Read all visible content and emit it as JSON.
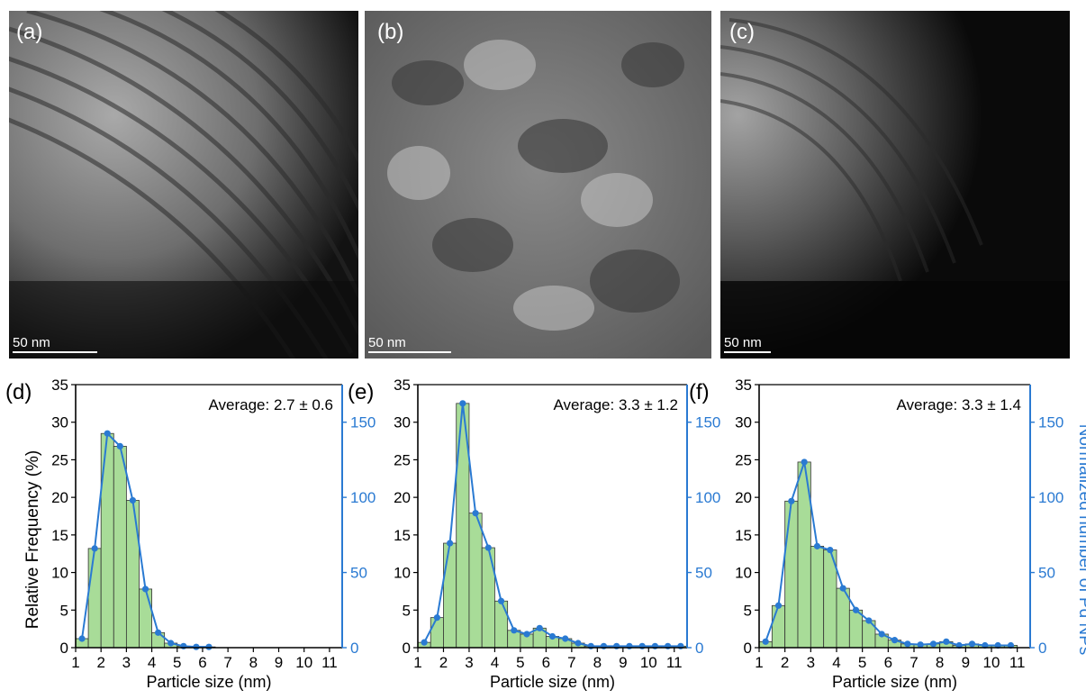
{
  "micrographs": [
    {
      "label": "(a)",
      "scale": "50 nm"
    },
    {
      "label": "(b)",
      "scale": "50 nm"
    },
    {
      "label": "(c)",
      "scale": "50 nm"
    }
  ],
  "axis_labels": {
    "left": "Relative Frequency (%)",
    "right": "Normalized number of Pd NPs",
    "x": "Particle size (nm)"
  },
  "colors": {
    "bar_fill": "#a8dc98",
    "line": "#2a7ad2",
    "right_axis": "#2a7ad2"
  },
  "chart_data": [
    {
      "type": "bar",
      "panel": "(d)",
      "annotation": "Average: 2.7 ± 0.6",
      "xlabel": "Particle size (nm)",
      "ylabel": "Relative Frequency (%)",
      "xlim": [
        1,
        11.5
      ],
      "ylim": [
        0,
        35
      ],
      "y2lim": [
        0,
        175
      ],
      "xticks": [
        "1",
        "2",
        "3",
        "4",
        "5",
        "6",
        "7",
        "8",
        "9",
        "10",
        "11"
      ],
      "yticks": [
        "0",
        "5",
        "10",
        "15",
        "20",
        "25",
        "30",
        "35"
      ],
      "y2ticks": [
        "0",
        "50",
        "100",
        "150"
      ],
      "x": [
        1.25,
        1.75,
        2.25,
        2.75,
        3.25,
        3.75,
        4.25,
        4.75,
        5.25,
        5.75,
        6.25
      ],
      "values": [
        1.2,
        13.2,
        28.5,
        26.8,
        19.6,
        7.8,
        2.0,
        0.6,
        0.2,
        0.1,
        0.1
      ]
    },
    {
      "type": "bar",
      "panel": "(e)",
      "annotation": "Average: 3.3 ± 1.2",
      "xlabel": "Particle size (nm)",
      "ylabel": "",
      "xlim": [
        1,
        11.5
      ],
      "ylim": [
        0,
        35
      ],
      "y2lim": [
        0,
        175
      ],
      "xticks": [
        "1",
        "2",
        "3",
        "4",
        "5",
        "6",
        "7",
        "8",
        "9",
        "10",
        "11"
      ],
      "yticks": [
        "0",
        "5",
        "10",
        "15",
        "20",
        "25",
        "30",
        "35"
      ],
      "y2ticks": [
        "0",
        "50",
        "100",
        "150"
      ],
      "x": [
        1.25,
        1.75,
        2.25,
        2.75,
        3.25,
        3.75,
        4.25,
        4.75,
        5.25,
        5.75,
        6.25,
        6.75,
        7.25,
        7.75,
        8.25,
        8.75,
        9.25,
        9.75,
        10.25,
        10.75,
        11.25
      ],
      "values": [
        0.7,
        4.0,
        13.9,
        32.5,
        17.9,
        13.3,
        6.2,
        2.3,
        1.8,
        2.6,
        1.5,
        1.2,
        0.6,
        0.2,
        0.2,
        0.2,
        0.2,
        0.2,
        0.2,
        0.2,
        0.2
      ]
    },
    {
      "type": "bar",
      "panel": "(f)",
      "annotation": "Average: 3.3 ± 1.4",
      "xlabel": "Particle size (nm)",
      "ylabel": "",
      "xlim": [
        1,
        11.5
      ],
      "ylim": [
        0,
        35
      ],
      "y2lim": [
        0,
        175
      ],
      "xticks": [
        "1",
        "2",
        "3",
        "4",
        "5",
        "6",
        "7",
        "8",
        "9",
        "10",
        "11"
      ],
      "yticks": [
        "0",
        "5",
        "10",
        "15",
        "20",
        "25",
        "30",
        "35"
      ],
      "y2ticks": [
        "0",
        "50",
        "100",
        "150"
      ],
      "x": [
        1.25,
        1.75,
        2.25,
        2.75,
        3.25,
        3.75,
        4.25,
        4.75,
        5.25,
        5.75,
        6.25,
        6.75,
        7.25,
        7.75,
        8.25,
        8.75,
        9.25,
        9.75,
        10.25,
        10.75
      ],
      "values": [
        0.8,
        5.6,
        19.5,
        24.7,
        13.5,
        13.0,
        7.9,
        5.0,
        3.6,
        1.8,
        1.0,
        0.5,
        0.4,
        0.5,
        0.8,
        0.3,
        0.5,
        0.3,
        0.3,
        0.3
      ]
    }
  ]
}
